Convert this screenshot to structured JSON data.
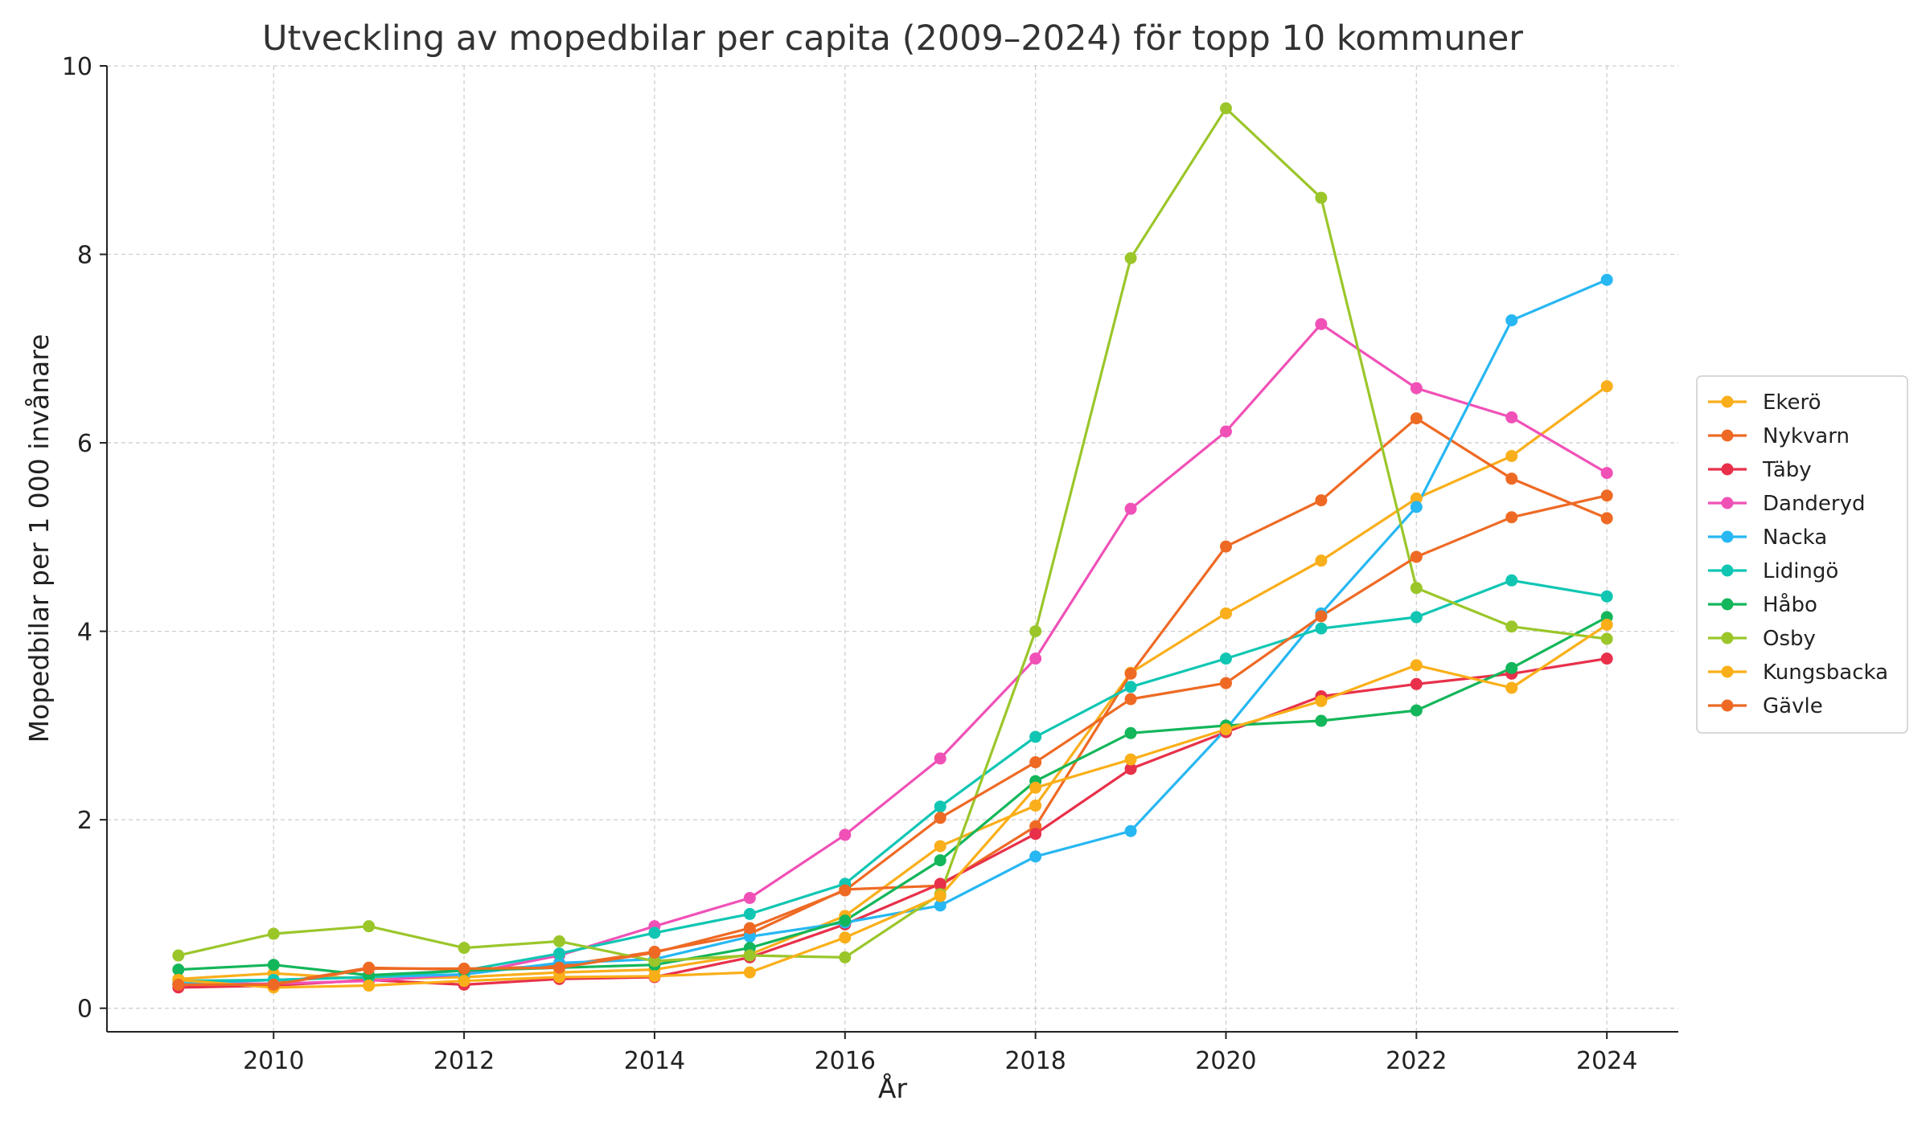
{
  "chart_data": {
    "type": "line",
    "title": "Utveckling av mopedbilar per capita (2009–2024) för topp 10 kommuner",
    "xlabel": "År",
    "ylabel": "Mopedbilar per 1 000 invånare",
    "x": [
      2009,
      2010,
      2011,
      2012,
      2013,
      2014,
      2015,
      2016,
      2017,
      2018,
      2019,
      2020,
      2021,
      2022,
      2023,
      2024
    ],
    "xlim": [
      2008.25,
      2024.75
    ],
    "ylim": [
      -0.25,
      10
    ],
    "xticks": [
      2010,
      2012,
      2014,
      2016,
      2018,
      2020,
      2022,
      2024
    ],
    "yticks": [
      0,
      2,
      4,
      6,
      8,
      10
    ],
    "grid": true,
    "legend_position": "center-right",
    "series": [
      {
        "name": "Ekerö",
        "color": "#F9AE1B",
        "values": [
          0.31,
          0.37,
          0.31,
          0.33,
          0.38,
          0.41,
          0.57,
          0.98,
          1.72,
          2.15,
          3.56,
          4.19,
          4.75,
          5.41,
          5.86,
          6.6
        ]
      },
      {
        "name": "Nykvarn",
        "color": "#EE6A24",
        "values": [
          0.26,
          0.26,
          0.43,
          0.41,
          0.45,
          0.6,
          0.79,
          1.26,
          1.3,
          1.93,
          3.55,
          4.9,
          5.39,
          6.26,
          5.62,
          5.2
        ]
      },
      {
        "name": "Täby",
        "color": "#E8304A",
        "values": [
          0.22,
          0.24,
          0.3,
          0.25,
          0.31,
          0.33,
          0.54,
          0.89,
          1.32,
          1.85,
          2.54,
          2.93,
          3.31,
          3.44,
          3.55,
          3.71
        ]
      },
      {
        "name": "Danderyd",
        "color": "#F051B7",
        "values": [
          0.25,
          0.26,
          0.29,
          0.36,
          0.56,
          0.87,
          1.17,
          1.84,
          2.65,
          3.71,
          5.3,
          6.12,
          7.26,
          6.58,
          6.27,
          5.68
        ]
      },
      {
        "name": "Nacka",
        "color": "#27B7F2",
        "values": [
          0.26,
          0.3,
          0.33,
          0.36,
          0.48,
          0.52,
          0.76,
          0.91,
          1.09,
          1.61,
          1.88,
          2.96,
          4.19,
          5.32,
          7.3,
          7.73
        ]
      },
      {
        "name": "Lidingö",
        "color": "#10C6B3",
        "values": [
          0.29,
          0.3,
          0.33,
          0.4,
          0.58,
          0.8,
          1.0,
          1.32,
          2.14,
          2.88,
          3.41,
          3.71,
          4.03,
          4.15,
          4.54,
          4.37
        ]
      },
      {
        "name": "Håbo",
        "color": "#13B65A",
        "values": [
          0.41,
          0.46,
          0.35,
          0.4,
          0.43,
          0.46,
          0.64,
          0.93,
          1.57,
          2.41,
          2.92,
          3.0,
          3.05,
          3.16,
          3.61,
          4.15
        ]
      },
      {
        "name": "Osby",
        "color": "#9BC62A",
        "values": [
          0.56,
          0.79,
          0.87,
          0.64,
          0.71,
          0.5,
          0.56,
          0.54,
          1.21,
          4.0,
          7.96,
          9.55,
          8.6,
          4.46,
          4.05,
          3.92
        ]
      },
      {
        "name": "Kungsbacka",
        "color": "#FAAF18",
        "values": [
          0.3,
          0.22,
          0.24,
          0.29,
          0.33,
          0.34,
          0.38,
          0.75,
          1.19,
          2.34,
          2.64,
          2.96,
          3.26,
          3.64,
          3.4,
          4.07
        ]
      },
      {
        "name": "Gävle",
        "color": "#EE6A24",
        "values": [
          0.25,
          0.25,
          0.42,
          0.42,
          0.43,
          0.59,
          0.85,
          1.25,
          2.02,
          2.61,
          3.28,
          3.45,
          4.16,
          4.79,
          5.21,
          5.44
        ]
      }
    ]
  }
}
